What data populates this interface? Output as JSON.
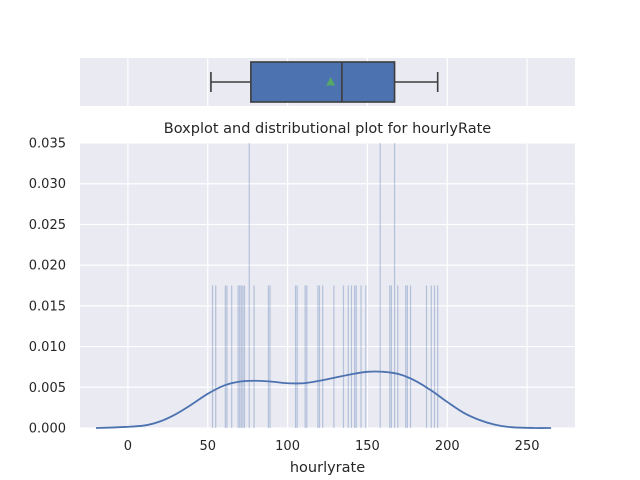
{
  "chart_data": [
    {
      "type": "box",
      "orientation": "horizontal",
      "x": {
        "min": -30,
        "max": 280
      },
      "grid": true,
      "stats": {
        "whisker_low": 52,
        "q1": 77,
        "median": 134,
        "mean": 127,
        "q3": 167,
        "whisker_high": 194
      },
      "colors": {
        "box": "#4c72b0",
        "mean_marker": "#55a868",
        "line": "#3d3d3d",
        "background": "#eaeaf2"
      }
    },
    {
      "type": "histogram+kde",
      "title": "Boxplot and distributional plot for hourlyRate",
      "xlabel": "hourlyrate",
      "ylabel": "",
      "xlim": [
        -30,
        280
      ],
      "ylim": [
        0,
        0.035
      ],
      "grid": true,
      "x_ticks": [
        0,
        50,
        100,
        150,
        200,
        250
      ],
      "y_ticks": [
        "0.000",
        "0.005",
        "0.010",
        "0.015",
        "0.020",
        "0.025",
        "0.030",
        "0.035"
      ],
      "histogram_bins": [
        {
          "x": 53,
          "density": 0.0175
        },
        {
          "x": 55,
          "density": 0.0175
        },
        {
          "x": 61,
          "density": 0.0175
        },
        {
          "x": 62,
          "density": 0.0175
        },
        {
          "x": 65,
          "density": 0.0175
        },
        {
          "x": 69,
          "density": 0.0175
        },
        {
          "x": 70,
          "density": 0.0175
        },
        {
          "x": 71,
          "density": 0.0175
        },
        {
          "x": 72,
          "density": 0.0175
        },
        {
          "x": 73,
          "density": 0.0175
        },
        {
          "x": 76,
          "density": 0.035
        },
        {
          "x": 79,
          "density": 0.0175
        },
        {
          "x": 88,
          "density": 0.0175
        },
        {
          "x": 89,
          "density": 0.0175
        },
        {
          "x": 105,
          "density": 0.0175
        },
        {
          "x": 106,
          "density": 0.0175
        },
        {
          "x": 111,
          "density": 0.0175
        },
        {
          "x": 112,
          "density": 0.0175
        },
        {
          "x": 119,
          "density": 0.0175
        },
        {
          "x": 120,
          "density": 0.0175
        },
        {
          "x": 122,
          "density": 0.0175
        },
        {
          "x": 129,
          "density": 0.0175
        },
        {
          "x": 135,
          "density": 0.0175
        },
        {
          "x": 138,
          "density": 0.0175
        },
        {
          "x": 140,
          "density": 0.0175
        },
        {
          "x": 142,
          "density": 0.0175
        },
        {
          "x": 143,
          "density": 0.0175
        },
        {
          "x": 146,
          "density": 0.0175
        },
        {
          "x": 149,
          "density": 0.0175
        },
        {
          "x": 158,
          "density": 0.035
        },
        {
          "x": 164,
          "density": 0.0175
        },
        {
          "x": 165,
          "density": 0.0175
        },
        {
          "x": 167,
          "density": 0.035
        },
        {
          "x": 169,
          "density": 0.0175
        },
        {
          "x": 174,
          "density": 0.0175
        },
        {
          "x": 175,
          "density": 0.0175
        },
        {
          "x": 177,
          "density": 0.0175
        },
        {
          "x": 187,
          "density": 0.0175
        },
        {
          "x": 190,
          "density": 0.0175
        },
        {
          "x": 192,
          "density": 0.0175
        },
        {
          "x": 194,
          "density": 0.0175
        }
      ],
      "kde_curve": [
        {
          "x": -20,
          "y": 0.0
        },
        {
          "x": -5,
          "y": 0.0001
        },
        {
          "x": 10,
          "y": 0.0003
        },
        {
          "x": 20,
          "y": 0.0008
        },
        {
          "x": 30,
          "y": 0.0017
        },
        {
          "x": 40,
          "y": 0.0029
        },
        {
          "x": 50,
          "y": 0.0042
        },
        {
          "x": 60,
          "y": 0.0052
        },
        {
          "x": 70,
          "y": 0.0057
        },
        {
          "x": 80,
          "y": 0.0058
        },
        {
          "x": 90,
          "y": 0.0057
        },
        {
          "x": 100,
          "y": 0.0055
        },
        {
          "x": 110,
          "y": 0.0055
        },
        {
          "x": 120,
          "y": 0.0058
        },
        {
          "x": 130,
          "y": 0.0062
        },
        {
          "x": 140,
          "y": 0.0066
        },
        {
          "x": 150,
          "y": 0.0069
        },
        {
          "x": 160,
          "y": 0.0069
        },
        {
          "x": 170,
          "y": 0.0066
        },
        {
          "x": 180,
          "y": 0.0058
        },
        {
          "x": 190,
          "y": 0.0046
        },
        {
          "x": 200,
          "y": 0.0032
        },
        {
          "x": 210,
          "y": 0.0019
        },
        {
          "x": 220,
          "y": 0.001
        },
        {
          "x": 230,
          "y": 0.0004
        },
        {
          "x": 240,
          "y": 0.0001
        },
        {
          "x": 255,
          "y": 0.0
        },
        {
          "x": 265,
          "y": 0.0
        }
      ],
      "colors": {
        "bars": "#4c72b0",
        "kde": "#4c72b0",
        "background": "#eaeaf2",
        "grid": "#ffffff"
      }
    }
  ]
}
